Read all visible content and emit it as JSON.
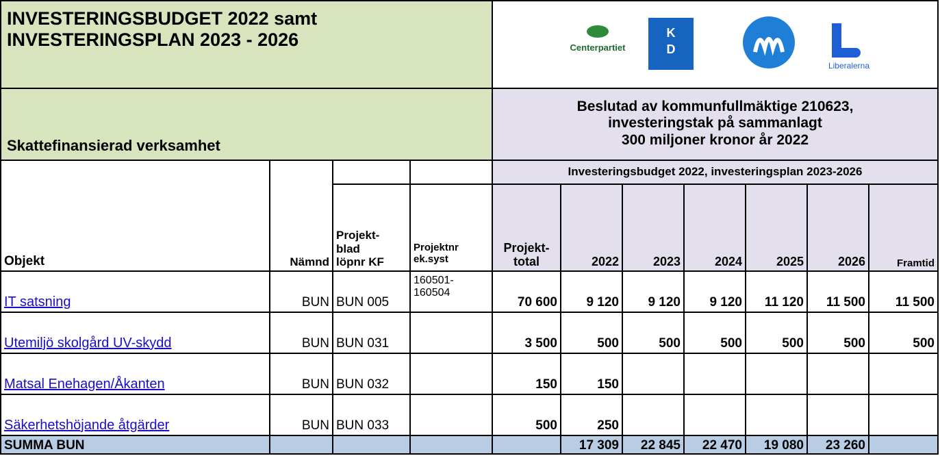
{
  "header": {
    "title": [
      "INVESTERINGSBUDGET 2022 samt",
      "INVESTERINGSPLAN 2023 - 2026"
    ],
    "subtitle": "Skattefinansierad verksamhet",
    "decision": [
      "Beslutad av kommunfullmäktige 210623,",
      "investeringstak på sammanlagt",
      "300 miljoner kronor år 2022"
    ],
    "band": "Investeringsbudget 2022, investeringsplan 2023-2026",
    "logos": {
      "centerpartiet": "Centerpartiet",
      "kd": [
        "K",
        "D"
      ],
      "liberalerna": "Liberalerna"
    }
  },
  "table": {
    "columns": [
      [
        "Objekt"
      ],
      [
        "Nämnd"
      ],
      [
        "Projekt-",
        "blad",
        "löpnr KF"
      ],
      [
        "Projektnr",
        "ek.syst"
      ],
      [
        "Projekt-",
        "total"
      ],
      [
        "2022"
      ],
      [
        "2023"
      ],
      [
        "2024"
      ],
      [
        "2025"
      ],
      [
        "2026"
      ],
      [
        "Framtid"
      ]
    ],
    "rows": [
      [
        [
          "IT satsning "
        ],
        [
          "BUN"
        ],
        [
          "BUN 005"
        ],
        [
          "160501-",
          "160504"
        ],
        [
          "70 600"
        ],
        [
          "9 120"
        ],
        [
          "9 120"
        ],
        [
          "9 120"
        ],
        [
          "11 120"
        ],
        [
          "11 500"
        ],
        [
          "11 500"
        ]
      ],
      [
        [
          "Utemiljö skolgård UV-skydd"
        ],
        [
          "BUN"
        ],
        [
          "BUN 031"
        ],
        null,
        [
          "3 500"
        ],
        [
          "500"
        ],
        [
          "500"
        ],
        [
          "500"
        ],
        [
          "500"
        ],
        [
          "500"
        ],
        [
          "500"
        ]
      ],
      [
        [
          "Matsal Enehagen/Åkanten"
        ],
        [
          "BUN"
        ],
        [
          "BUN 032"
        ],
        null,
        [
          "150"
        ],
        [
          "150"
        ],
        null,
        null,
        null,
        null,
        null
      ],
      [
        [
          "Säkerhetshöjande åtgärder"
        ],
        [
          "BUN"
        ],
        [
          "BUN 033"
        ],
        null,
        [
          "500"
        ],
        [
          "250"
        ],
        null,
        null,
        null,
        null,
        null
      ]
    ],
    "total": [
      [
        "SUMMA BUN"
      ],
      null,
      null,
      null,
      null,
      [
        "17 309"
      ],
      [
        "22 845"
      ],
      [
        "22 470"
      ],
      [
        "19 080"
      ],
      [
        "23 260"
      ],
      null
    ]
  }
}
